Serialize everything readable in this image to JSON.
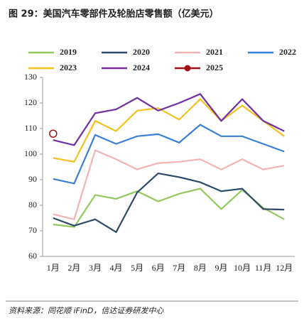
{
  "chart_data": {
    "type": "line",
    "title": "图 29：美国汽车零部件及轮胎店零售额（亿美元）",
    "source": "资料来源：同花顺 iFinD，信达证券研发中心",
    "categories": [
      "1月",
      "2月",
      "3月",
      "4月",
      "5月",
      "6月",
      "7月",
      "8月",
      "9月",
      "10月",
      "11月",
      "12月"
    ],
    "series": [
      {
        "name": "2019",
        "color": "#92c95c",
        "values": [
          72.5,
          71.5,
          84,
          82.5,
          85.5,
          81.5,
          84.5,
          86.5,
          78.5,
          86,
          79,
          74.5
        ]
      },
      {
        "name": "2020",
        "color": "#2e4a6b",
        "values": [
          75,
          72,
          74.5,
          69.5,
          85,
          92.5,
          91,
          89,
          85.5,
          86.5,
          78.5,
          78.3
        ]
      },
      {
        "name": "2021",
        "color": "#f4b3b3",
        "values": [
          76.5,
          74.5,
          101.5,
          98,
          94,
          96.5,
          97,
          98,
          94,
          98,
          94,
          95.5
        ]
      },
      {
        "name": "2022",
        "color": "#3a7fd6",
        "values": [
          90.3,
          88.5,
          107.5,
          104,
          107,
          107.8,
          104.5,
          111.5,
          107,
          107,
          104,
          101
        ]
      },
      {
        "name": "2023",
        "color": "#f5c020",
        "values": [
          98.5,
          97,
          113,
          109,
          117,
          118,
          113.5,
          121.5,
          113,
          119,
          113,
          107
        ]
      },
      {
        "name": "2024",
        "color": "#7030a0",
        "values": [
          105.5,
          103.5,
          116,
          117.5,
          122,
          117,
          120,
          123.5,
          113,
          121.5,
          113,
          109
        ]
      },
      {
        "name": "2025",
        "color": "#a01010",
        "marker": "circle",
        "values": [
          108,
          null,
          null,
          null,
          null,
          null,
          null,
          null,
          null,
          null,
          null,
          null
        ]
      }
    ],
    "ylim": [
      60,
      130
    ],
    "yticks": [
      60,
      70,
      80,
      90,
      100,
      110,
      120,
      130
    ],
    "grid": false
  }
}
